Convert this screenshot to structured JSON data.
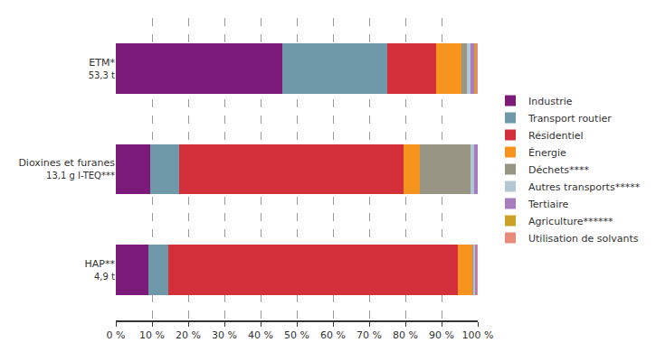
{
  "chart_data": {
    "type": "bar",
    "orientation": "horizontal",
    "stacked": true,
    "grid": true,
    "legend": "right",
    "categories": [
      "ETM*",
      "Dioxines et furanes",
      "HAP**"
    ],
    "category_notes": [
      "53,3 t",
      "13,1 g I-TEQ***",
      "4,9 t"
    ],
    "xlim": [
      0,
      100
    ],
    "xticks": [
      {
        "value": 0,
        "label": "0 %"
      },
      {
        "value": 10,
        "label": "10 %"
      },
      {
        "value": 20,
        "label": "20 %"
      },
      {
        "value": 30,
        "label": "30 %"
      },
      {
        "value": 40,
        "label": "40 %"
      },
      {
        "value": 50,
        "label": "50 %"
      },
      {
        "value": 60,
        "label": "60 %"
      },
      {
        "value": 70,
        "label": "70 %"
      },
      {
        "value": 80,
        "label": "80 %"
      },
      {
        "value": 90,
        "label": "90 %"
      },
      {
        "value": 100,
        "label": "100 %"
      }
    ],
    "series": [
      {
        "name": "Industrie",
        "color": "#7b1a78",
        "values": [
          46,
          9.5,
          9
        ]
      },
      {
        "name": "Transport routier",
        "color": "#6f98a8",
        "values": [
          29,
          8,
          5.5
        ]
      },
      {
        "name": "Résidentiel",
        "color": "#d4303c",
        "values": [
          13.5,
          62,
          80
        ]
      },
      {
        "name": "Énergie",
        "color": "#f7941d",
        "values": [
          7,
          4.5,
          4
        ]
      },
      {
        "name": "Déchets****",
        "color": "#999584",
        "values": [
          1.5,
          14,
          0.3
        ]
      },
      {
        "name": "Autres transports*****",
        "color": "#b2c7d3",
        "values": [
          1,
          1,
          0.5
        ]
      },
      {
        "name": "Tertiaire",
        "color": "#a87dbf",
        "values": [
          1,
          1,
          0.5
        ]
      },
      {
        "name": "Agriculture******",
        "color": "#c9a227",
        "values": [
          0.5,
          0,
          0
        ]
      },
      {
        "name": "Utilisation de solvants",
        "color": "#e8897a",
        "values": [
          0.5,
          0,
          0.2
        ]
      }
    ]
  }
}
